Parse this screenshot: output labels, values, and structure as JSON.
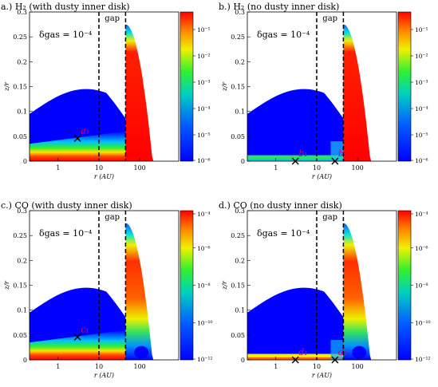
{
  "figure": {
    "axes": {
      "y_label": "z/r",
      "x_label": "r (AU)",
      "y_ticks": [
        "0",
        "0.05",
        "0.1",
        "0.15",
        "0.2",
        "0.25",
        "0.3"
      ],
      "x_ticks": [
        "1",
        "10",
        "100"
      ],
      "gap_label": "gap"
    },
    "colors": {
      "low": "#0000ff",
      "mid": "#00ff60",
      "high": "#ff0000",
      "background": "#ffffff"
    }
  },
  "chart_data": [
    {
      "type": "heatmap",
      "title": "a.) H₂ (with dusty inner disk)",
      "annotation": "δgas = 10⁻⁴",
      "xlabel": "r (AU)",
      "ylabel": "z/r",
      "xscale": "log",
      "ylim": [
        0,
        0.3
      ],
      "gap_lines": [
        10,
        45
      ],
      "markers": [
        {
          "label": "a₁",
          "r": 3,
          "z": 0.046
        }
      ],
      "colorbar": {
        "scale": "log",
        "ticks": [
          "10⁻¹",
          "10⁻²",
          "10⁻³",
          "10⁻⁴",
          "10⁻⁵",
          "10⁻⁶"
        ]
      }
    },
    {
      "type": "heatmap",
      "title": "b.) H₂ (no dusty inner disk)",
      "annotation": "δgas = 10⁻⁴",
      "xlabel": "r (AU)",
      "ylabel": "z/r",
      "xscale": "log",
      "ylim": [
        0,
        0.3
      ],
      "gap_lines": [
        10,
        45
      ],
      "markers": [
        {
          "label": "b₁",
          "r": 3,
          "z": 0.0
        },
        {
          "label": "b₂",
          "r": 28,
          "z": 0.0
        }
      ],
      "colorbar": {
        "scale": "log",
        "ticks": [
          "10⁻¹",
          "10⁻²",
          "10⁻³",
          "10⁻⁴",
          "10⁻⁵",
          "10⁻⁶"
        ]
      }
    },
    {
      "type": "heatmap",
      "title": "c.) CO (with dusty inner disk)",
      "annotation": "δgas = 10⁻⁴",
      "xlabel": "r (AU)",
      "ylabel": "z/r",
      "xscale": "log",
      "ylim": [
        0,
        0.3
      ],
      "gap_lines": [
        10,
        45
      ],
      "markers": [
        {
          "label": "c₁",
          "r": 3,
          "z": 0.046
        }
      ],
      "colorbar": {
        "scale": "log",
        "ticks": [
          "10⁻⁴",
          "10⁻⁶",
          "10⁻⁸",
          "10⁻¹⁰",
          "10⁻¹²"
        ]
      }
    },
    {
      "type": "heatmap",
      "title": "d.) CO (no dusty inner disk)",
      "annotation": "δgas = 10⁻⁴",
      "xlabel": "r (AU)",
      "ylabel": "z/r",
      "xscale": "log",
      "ylim": [
        0,
        0.3
      ],
      "gap_lines": [
        10,
        45
      ],
      "markers": [
        {
          "label": "d₁",
          "r": 3,
          "z": 0.0
        },
        {
          "label": "d₂",
          "r": 28,
          "z": 0.0
        }
      ],
      "colorbar": {
        "scale": "log",
        "ticks": [
          "10⁻⁴",
          "10⁻⁶",
          "10⁻⁸",
          "10⁻¹⁰",
          "10⁻¹²"
        ]
      }
    }
  ]
}
